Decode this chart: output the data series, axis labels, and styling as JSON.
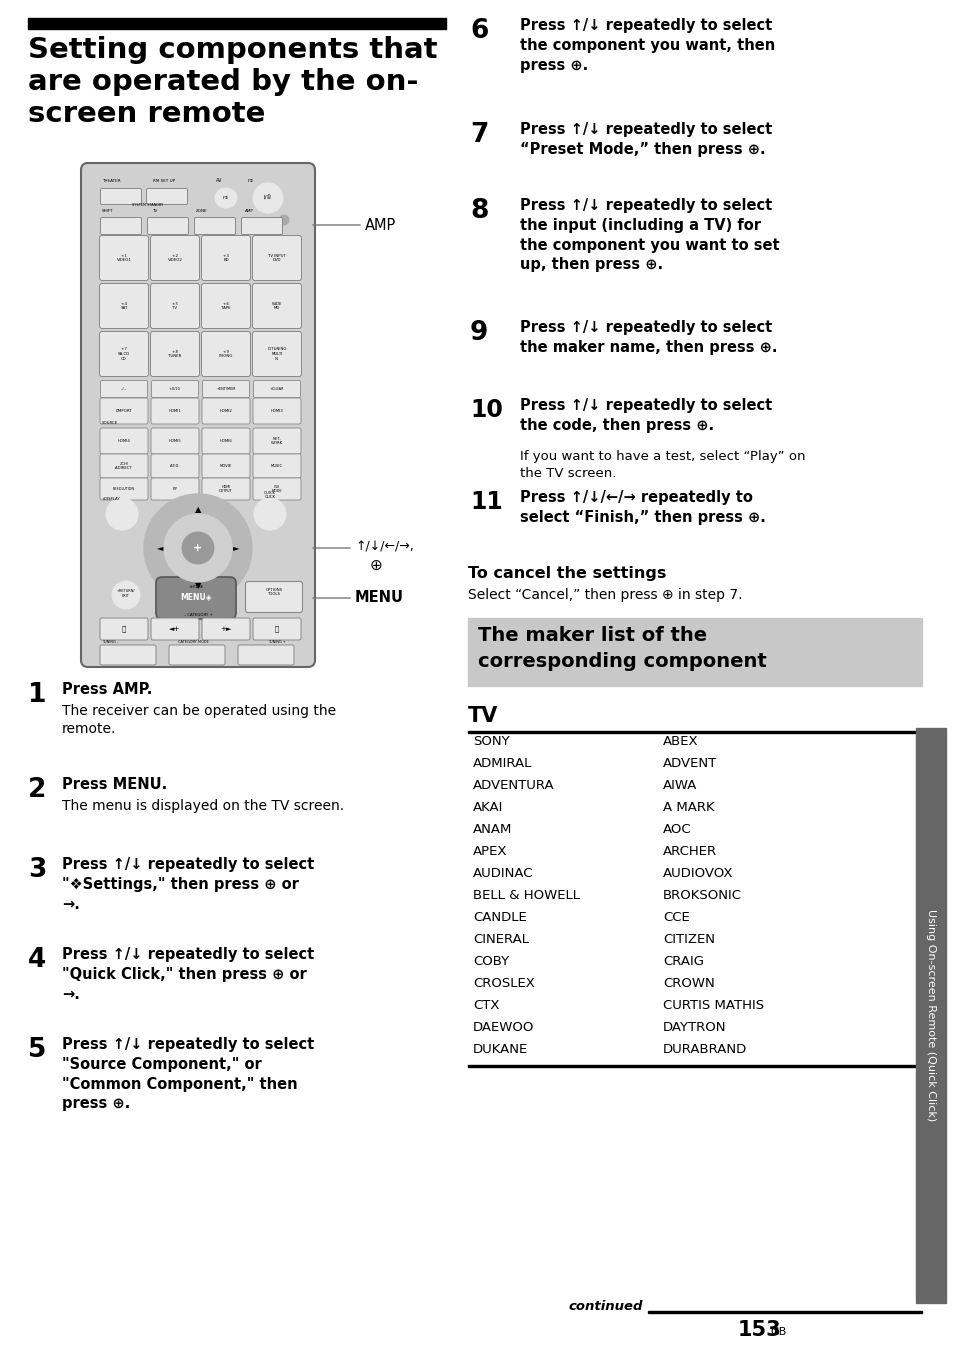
{
  "bg_color": "#ffffff",
  "page_width": 9.54,
  "page_height": 13.52,
  "title_line1": "Setting components that",
  "title_line2": "are operated by the on-",
  "title_line3": "screen remote",
  "section_bg_color": "#c8c8c8",
  "section_text_line1": "The maker list of the",
  "section_text_line2": "corresponding component",
  "tv_header": "TV",
  "left_col": [
    "SONY",
    "ADMIRAL",
    "ADVENTURA",
    "AKAI",
    "ANAM",
    "APEX",
    "AUDINAC",
    "BELL & HOWELL",
    "CANDLE",
    "CINERAL",
    "COBY",
    "CROSLEX",
    "CTX",
    "DAEWOO",
    "DUKANE"
  ],
  "right_col": [
    "ABEX",
    "ADVENT",
    "AIWA",
    "A MARK",
    "AOC",
    "ARCHER",
    "AUDIOVOX",
    "BROKSONIC",
    "CCE",
    "CITIZEN",
    "CRAIG",
    "CROWN",
    "CURTIS MATHIS",
    "DAYTRON",
    "DURABRAND"
  ],
  "side_label": "Using On-screen Remote (Quick Click)",
  "page_num": "153",
  "step6": "Press ↑/↓ repeatedly to select\nthe component you want, then\npress ⊕.",
  "step7": "Press ↑/↓ repeatedly to select\n“Preset Mode,” then press ⊕.",
  "step8": "Press ↑/↓ repeatedly to select\nthe input (including a TV) for\nthe component you want to set\nup, then press ⊕.",
  "step9": "Press ↑/↓ repeatedly to select\nthe maker name, then press ⊕.",
  "step10": "Press ↑/↓ repeatedly to select\nthe code, then press ⊕.",
  "step10_note": "If you want to have a test, select “Play” on\nthe TV screen.",
  "step11": "Press ↑/↓/←/→ repeatedly to\nselect “Finish,” then press ⊕.",
  "cancel_header": "To cancel the settings",
  "cancel_text": "Select “Cancel,” then press ⊕ in step 7.",
  "step1_bold": "Press AMP.",
  "step1_text": "The receiver can be operated using the\nremote.",
  "step2_bold": "Press MENU.",
  "step2_text": "The menu is displayed on the TV screen.",
  "step3_bold": "Press ↑/↓ repeatedly to select\n\"❖Settings,\" then press ⊕ or\n→.",
  "step4_bold": "Press ↑/↓ repeatedly to select\n\"Quick Click,\" then press ⊕ or\n→.",
  "step5_bold": "Press ↑/↓ repeatedly to select\n\"Source Component,\" or\n\"Common Component,\" then\npress ⊕.",
  "amp_label": "AMP",
  "arrows_label": "↑/↓/←/→,",
  "menu_label": "MENU",
  "continued_text": "continued",
  "remote_body_color": "#d0d0d0",
  "remote_border_color": "#666666",
  "btn_color": "#e8e8e8",
  "btn_border": "#888888"
}
